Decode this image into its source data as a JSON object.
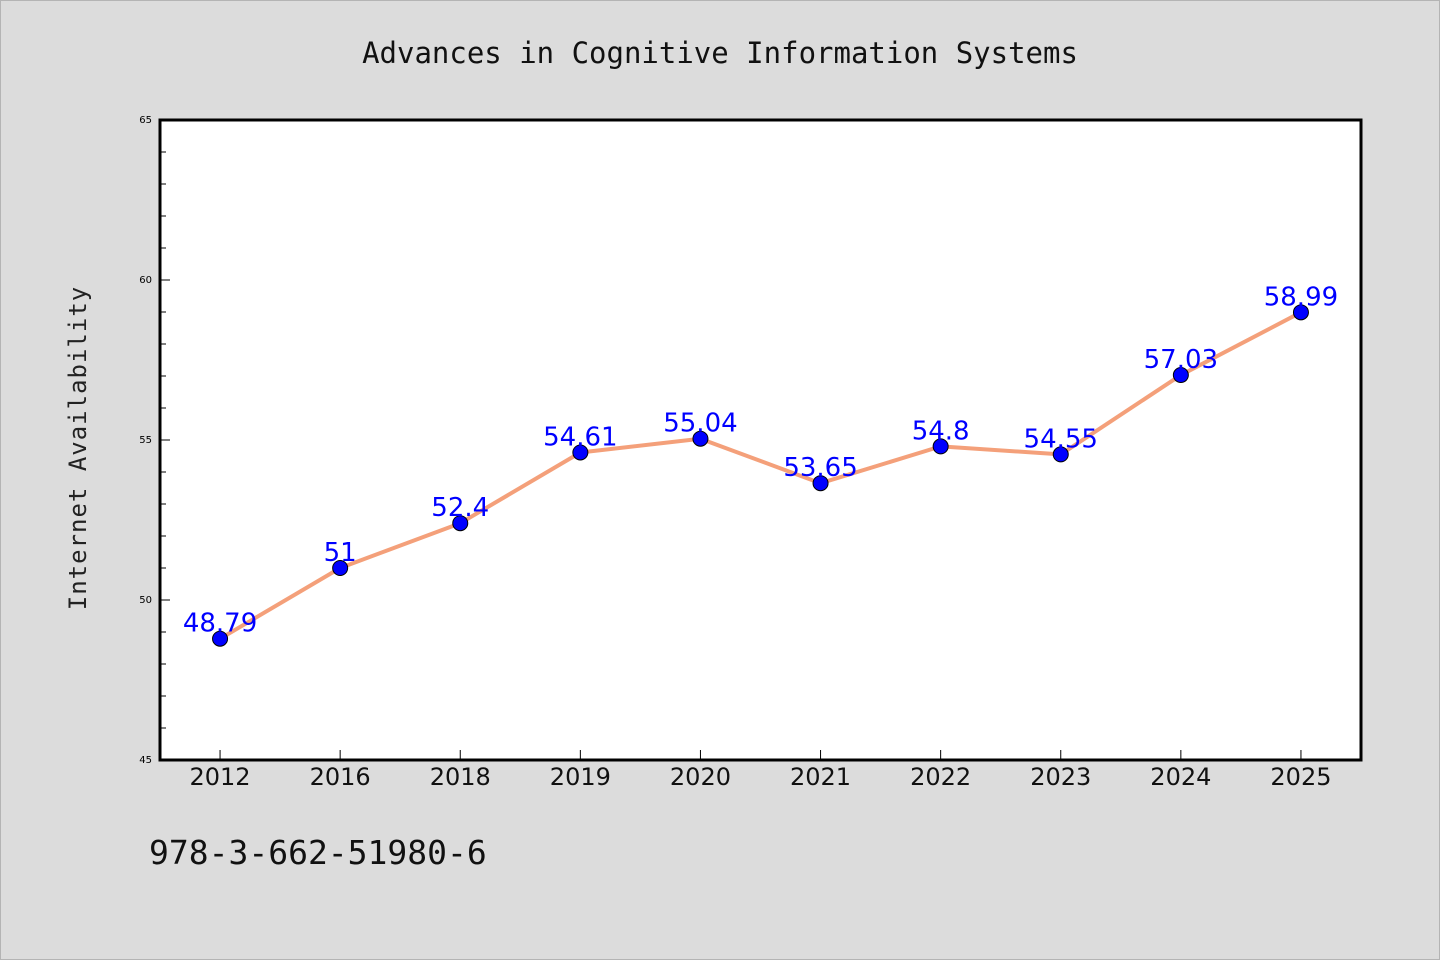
{
  "chart_data": {
    "type": "line",
    "title": "Advances in Cognitive Information Systems",
    "xlabel": "",
    "ylabel": "Internet Availability",
    "categories": [
      "2012",
      "2016",
      "2018",
      "2019",
      "2020",
      "2021",
      "2022",
      "2023",
      "2024",
      "2025"
    ],
    "values": [
      48.79,
      51,
      52.4,
      54.61,
      55.04,
      53.65,
      54.8,
      54.55,
      57.03,
      58.99
    ],
    "data_labels": [
      "48.79",
      "51",
      "52.4",
      "54.61",
      "55.04",
      "53.65",
      "54.8",
      "54.55",
      "57.03",
      "58.99"
    ],
    "ylim": [
      45,
      65
    ],
    "yticks": [
      45,
      50,
      55,
      60,
      65
    ],
    "ytick_labels": [
      "45",
      "50",
      "55",
      "60",
      "65"
    ],
    "grid": false,
    "legend": "none",
    "line_color": "#f4a07a",
    "marker_color": "#0000ff",
    "label_color": "#0000ff",
    "plot_background": "#ffffff",
    "figure_background": "#dcdcdc"
  },
  "footer": {
    "isbn": "978-3-662-51980-6"
  }
}
